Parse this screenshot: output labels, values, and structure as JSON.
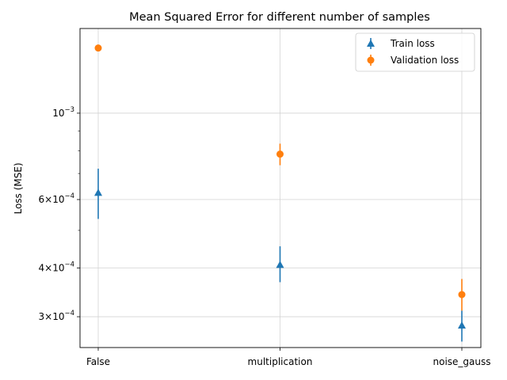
{
  "chart_data": {
    "type": "scatter",
    "title": "Mean Squared Error for different number of samples",
    "xlabel": "",
    "ylabel": "Loss (MSE)",
    "yscale": "log",
    "ylim": [
      0.00025,
      0.00165
    ],
    "categories": [
      "False",
      "multiplication",
      "noise_gauss"
    ],
    "y_ticks": [
      {
        "value": 0.001,
        "label_base": "10",
        "label_exp": "−3",
        "form": "power"
      },
      {
        "value": 0.0006,
        "label_base": "6×10",
        "label_exp": "−4",
        "form": "mult"
      },
      {
        "value": 0.0004,
        "label_base": "4×10",
        "label_exp": "−4",
        "form": "mult"
      },
      {
        "value": 0.0003,
        "label_base": "3×10",
        "label_exp": "−4",
        "form": "mult"
      }
    ],
    "y_minor_ticks": [
      0.0005,
      0.0007,
      0.0008,
      0.0009
    ],
    "grid": true,
    "legend": "top-right",
    "series": [
      {
        "name": "Train loss",
        "marker": "triangle",
        "color": "#1f77b4",
        "values": [
          0.000625,
          0.000408,
          0.000285
        ],
        "err_low": [
          0.000535,
          0.000368,
          0.000259
        ],
        "err_high": [
          0.00072,
          0.000455,
          0.000311
        ]
      },
      {
        "name": "Validation loss",
        "marker": "circle",
        "color": "#ff7f0e",
        "values": [
          0.00147,
          0.000785,
          0.000342
        ],
        "err_low": [
          0.001455,
          0.000735,
          0.000311
        ],
        "err_high": [
          0.00149,
          0.000835,
          0.000375
        ]
      }
    ]
  }
}
